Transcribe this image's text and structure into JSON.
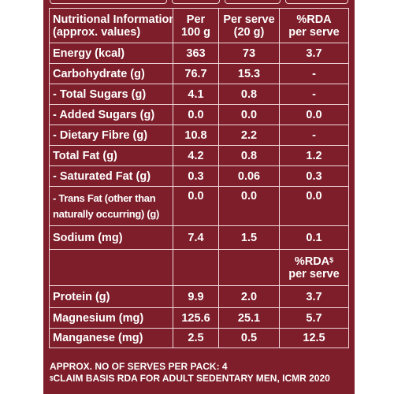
{
  "table": {
    "header": {
      "col_name": [
        "Nutritional Information",
        "(approx. values)"
      ],
      "col_per100": [
        "Per",
        "100 g"
      ],
      "col_perserve": [
        "Per serve",
        "(20 g)"
      ],
      "col_rda": [
        "%RDA",
        "per serve"
      ]
    },
    "rows1": [
      {
        "name": "Energy (kcal)",
        "per100": "363",
        "perserve": "73",
        "rda": "3.7"
      },
      {
        "name": "Carbohydrate (g)",
        "per100": "76.7",
        "perserve": "15.3",
        "rda": "-"
      },
      {
        "name": "- Total Sugars (g)",
        "per100": "4.1",
        "perserve": "0.8",
        "rda": "-"
      },
      {
        "name": "- Added Sugars (g)",
        "per100": "0.0",
        "perserve": "0.0",
        "rda": "0.0"
      },
      {
        "name": "- Dietary Fibre (g)",
        "per100": "10.8",
        "perserve": "2.2",
        "rda": "-"
      },
      {
        "name": "Total Fat (g)",
        "per100": "4.2",
        "perserve": "0.8",
        "rda": "1.2"
      },
      {
        "name": "- Saturated Fat (g)",
        "per100": "0.3",
        "perserve": "0.06",
        "rda": "0.3"
      }
    ],
    "trans_fat": {
      "name_line1": "- Trans Fat (other than",
      "name_line2": "naturally occurring) (g)",
      "per100": "0.0",
      "perserve": "0.0",
      "rda": "0.0"
    },
    "sodium": {
      "name": "Sodium (mg)",
      "per100": "7.4",
      "perserve": "1.5",
      "rda": "0.1"
    },
    "rda_sub_header": {
      "line1": "%RDA",
      "sup": "$",
      "line2": "per serve"
    },
    "rows2": [
      {
        "name": "Protein (g)",
        "per100": "9.9",
        "perserve": "2.0",
        "rda": "3.7"
      },
      {
        "name": "Magnesium (mg)",
        "per100": "125.6",
        "perserve": "25.1",
        "rda": "5.7"
      },
      {
        "name": "Manganese (mg)",
        "per100": "2.5",
        "perserve": "0.5",
        "rda": "12.5"
      }
    ]
  },
  "footer": {
    "serves": "APPROX. NO OF SERVES PER PACK: 4",
    "claim_sup": "$",
    "claim": "CLAIM BASIS RDA FOR ADULT SEDENTARY MEN, ICMR 2020"
  },
  "colors": {
    "background": "#7d1e2a",
    "text": "#ffffff",
    "lines": "#f3dadd"
  }
}
